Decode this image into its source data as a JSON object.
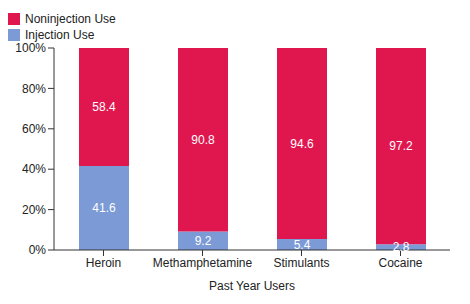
{
  "chart_data": {
    "type": "bar",
    "stacked": true,
    "data_labels": true,
    "legend": "top-right",
    "grid": false,
    "x_label": "Past Year Users",
    "categories": [
      "Heroin",
      "Methamphetamine",
      "Stimulants",
      "Cocaine"
    ],
    "series": [
      {
        "name": "Injection Use",
        "color": "#7b9ad6",
        "values": [
          41.6,
          9.2,
          5.4,
          2.8
        ]
      },
      {
        "name": "Noninjection Use",
        "color": "#e0174f",
        "values": [
          58.4,
          90.8,
          94.6,
          97.2
        ]
      }
    ],
    "ylim": [
      0,
      100
    ],
    "yticks": [
      {
        "value": 0,
        "label": "0%"
      },
      {
        "value": 20,
        "label": "20%"
      },
      {
        "value": 40,
        "label": "40%"
      },
      {
        "value": 60,
        "label": "60%"
      },
      {
        "value": 80,
        "label": "80%"
      },
      {
        "value": 100,
        "label": "100%"
      }
    ]
  }
}
